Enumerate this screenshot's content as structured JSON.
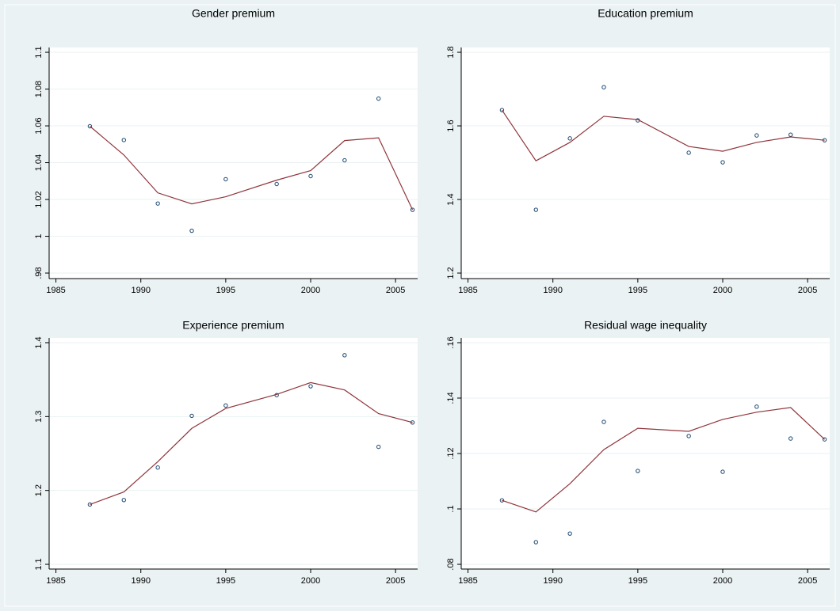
{
  "chart_data": [
    {
      "type": "scatter",
      "title": "Gender premium",
      "x": [
        1987,
        1989,
        1991,
        1993,
        1995,
        1998,
        2000,
        2002,
        2004,
        2006
      ],
      "series": [
        {
          "type": "scatter",
          "color": "#1a476f",
          "values": [
            1.0598,
            1.0523,
            1.0178,
            1.003,
            1.031,
            1.0284,
            1.0327,
            1.0413,
            1.0748,
            1.0144
          ]
        },
        {
          "type": "line",
          "color": "#90353b",
          "values": [
            1.0598,
            1.0442,
            1.0236,
            1.0176,
            1.0215,
            1.0305,
            1.0357,
            1.052,
            1.0535,
            1.0144
          ]
        }
      ],
      "xlim": [
        1984.6,
        2006.3
      ],
      "xticks": [
        1985,
        1990,
        1995,
        2000,
        2005
      ],
      "ylim": [
        0.977,
        1.1026
      ],
      "yticks": [
        {
          "value": 0.98,
          "label": ".98"
        },
        1,
        1.02,
        1.04,
        1.06,
        1.08,
        1.1
      ],
      "grid": true
    },
    {
      "type": "scatter",
      "title": "Education premium",
      "x": [
        1987,
        1989,
        1991,
        1993,
        1995,
        1998,
        2000,
        2002,
        2004,
        2006
      ],
      "series": [
        {
          "type": "scatter",
          "color": "#1a476f",
          "values": [
            1.643,
            1.372,
            1.566,
            1.705,
            1.615,
            1.527,
            1.501,
            1.574,
            1.576,
            1.561
          ]
        },
        {
          "type": "line",
          "color": "#90353b",
          "values": [
            1.643,
            1.505,
            1.555,
            1.626,
            1.617,
            1.544,
            1.531,
            1.555,
            1.57,
            1.561
          ]
        }
      ],
      "xlim": [
        1984.6,
        2006.3
      ],
      "xticks": [
        1985,
        1990,
        1995,
        2000,
        2005
      ],
      "ylim": [
        1.185,
        1.813
      ],
      "yticks": [
        1.2,
        1.4,
        1.6,
        1.8
      ],
      "grid": true
    },
    {
      "type": "scatter",
      "title": "Experience premium",
      "x": [
        1987,
        1989,
        1991,
        1993,
        1995,
        1998,
        2000,
        2002,
        2004,
        2006
      ],
      "series": [
        {
          "type": "scatter",
          "color": "#1a476f",
          "values": [
            1.181,
            1.187,
            1.231,
            1.301,
            1.315,
            1.329,
            1.341,
            1.383,
            1.259,
            1.292
          ]
        },
        {
          "type": "line",
          "color": "#90353b",
          "values": [
            1.181,
            1.198,
            1.239,
            1.284,
            1.311,
            1.33,
            1.346,
            1.336,
            1.304,
            1.292
          ]
        }
      ],
      "xlim": [
        1984.6,
        2006.3
      ],
      "xticks": [
        1985,
        1990,
        1995,
        2000,
        2005
      ],
      "ylim": [
        1.0936,
        1.4064
      ],
      "yticks": [
        1.1,
        1.2,
        1.3,
        1.4
      ],
      "grid": true
    },
    {
      "type": "scatter",
      "title": "Residual wage inequality",
      "x": [
        1987,
        1989,
        1991,
        1993,
        1995,
        1998,
        2000,
        2002,
        2004,
        2006
      ],
      "series": [
        {
          "type": "scatter",
          "color": "#1a476f",
          "values": [
            0.1031,
            0.088,
            0.0911,
            0.1314,
            0.1137,
            0.1263,
            0.1134,
            0.1369,
            0.1254,
            0.1251
          ]
        },
        {
          "type": "line",
          "color": "#90353b",
          "values": [
            0.1031,
            0.0989,
            0.1091,
            0.1214,
            0.1291,
            0.128,
            0.1323,
            0.1349,
            0.1366,
            0.1251
          ]
        }
      ],
      "xlim": [
        1984.6,
        2006.3
      ],
      "xticks": [
        1985,
        1990,
        1995,
        2000,
        2005
      ],
      "ylim": [
        0.0783,
        0.1617
      ],
      "yticks": [
        {
          "value": 0.08,
          "label": ".08"
        },
        {
          "value": 0.1,
          "label": ".1"
        },
        {
          "value": 0.12,
          "label": ".12"
        },
        {
          "value": 0.14,
          "label": ".14"
        },
        {
          "value": 0.16,
          "label": ".16"
        }
      ],
      "grid": true
    }
  ]
}
